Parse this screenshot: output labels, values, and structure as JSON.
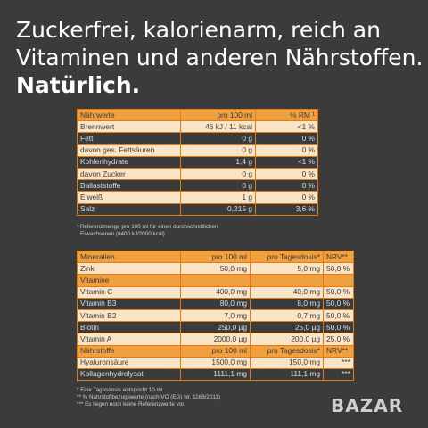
{
  "headline": {
    "line1": "Zuckerfrei, kalorienarm, reich an",
    "line2": "Vitaminen und anderen Nährstoffen.",
    "line3": "Natürlich."
  },
  "nutrition": {
    "headers": [
      "Nährwerte",
      "pro 100 ml",
      "% RM ¹"
    ],
    "rows": [
      [
        "Brennwert",
        "46 kJ / 11 kcal",
        "<1 %"
      ],
      [
        "Fett",
        "0 g",
        "0 %"
      ],
      [
        "davon ges. Fettsäuren",
        "0 g",
        "0 %"
      ],
      [
        "Kohlenhydrate",
        "1,4 g",
        "<1 %"
      ],
      [
        "davon Zucker",
        "0 g",
        "0 %"
      ],
      [
        "Ballaststoffe",
        "0 g",
        "0 %"
      ],
      [
        "Eiweiß",
        "1 g",
        "0 %"
      ],
      [
        "Salz",
        "0,215 g",
        "3,6 %"
      ]
    ],
    "footnote1": "¹ Referenzmenge pro 100 ml für einen durchschnittlichen",
    "footnote2": "Erwachsenen (8400 kJ/2000 kcal)"
  },
  "micro": {
    "minerals": {
      "headers": [
        "Mineralien",
        "pro 100 ml",
        "pro Tagesdosis*",
        "NRV**"
      ],
      "rows": [
        [
          "Zink",
          "50,0 mg",
          "5,0 mg",
          "50,0 %"
        ]
      ]
    },
    "vitamins": {
      "headers": [
        "Vitamine",
        "",
        "",
        ""
      ],
      "rows": [
        [
          "Vitamin C",
          "400,0 mg",
          "40,0 mg",
          "50,0 %"
        ],
        [
          "Vitamin B3",
          "80,0 mg",
          "8,0 mg",
          "50,0 %"
        ],
        [
          "Vitamin B2",
          "7,0 mg",
          "0,7 mg",
          "50,0 %"
        ],
        [
          "Biotin",
          "250,0 µg",
          "25,0 µg",
          "50,0 %"
        ],
        [
          "Vitamin A",
          "2000,0 µg",
          "200,0 µg",
          "25,0 %"
        ]
      ]
    },
    "nutrients": {
      "headers": [
        "Nährstoffe",
        "pro 100 ml",
        "pro Tagesdosis*",
        "NRV**"
      ],
      "rows": [
        [
          "Hyaluronsäure",
          "1500,0 mg",
          "150,0 mg",
          "***"
        ],
        [
          "Kollagenhydrolysat",
          "1111,1 mg",
          "111,1 mg",
          "***"
        ]
      ]
    },
    "footnotes": [
      "*   Eine Tagesdosis entspricht 10 ml",
      "**  % Nährstoffbezugswerte (nach VO (EG) Nr. 1169/2011)",
      "*** Es liegen noch keine Referenzwerte vor."
    ]
  },
  "watermark": "BAZAR"
}
